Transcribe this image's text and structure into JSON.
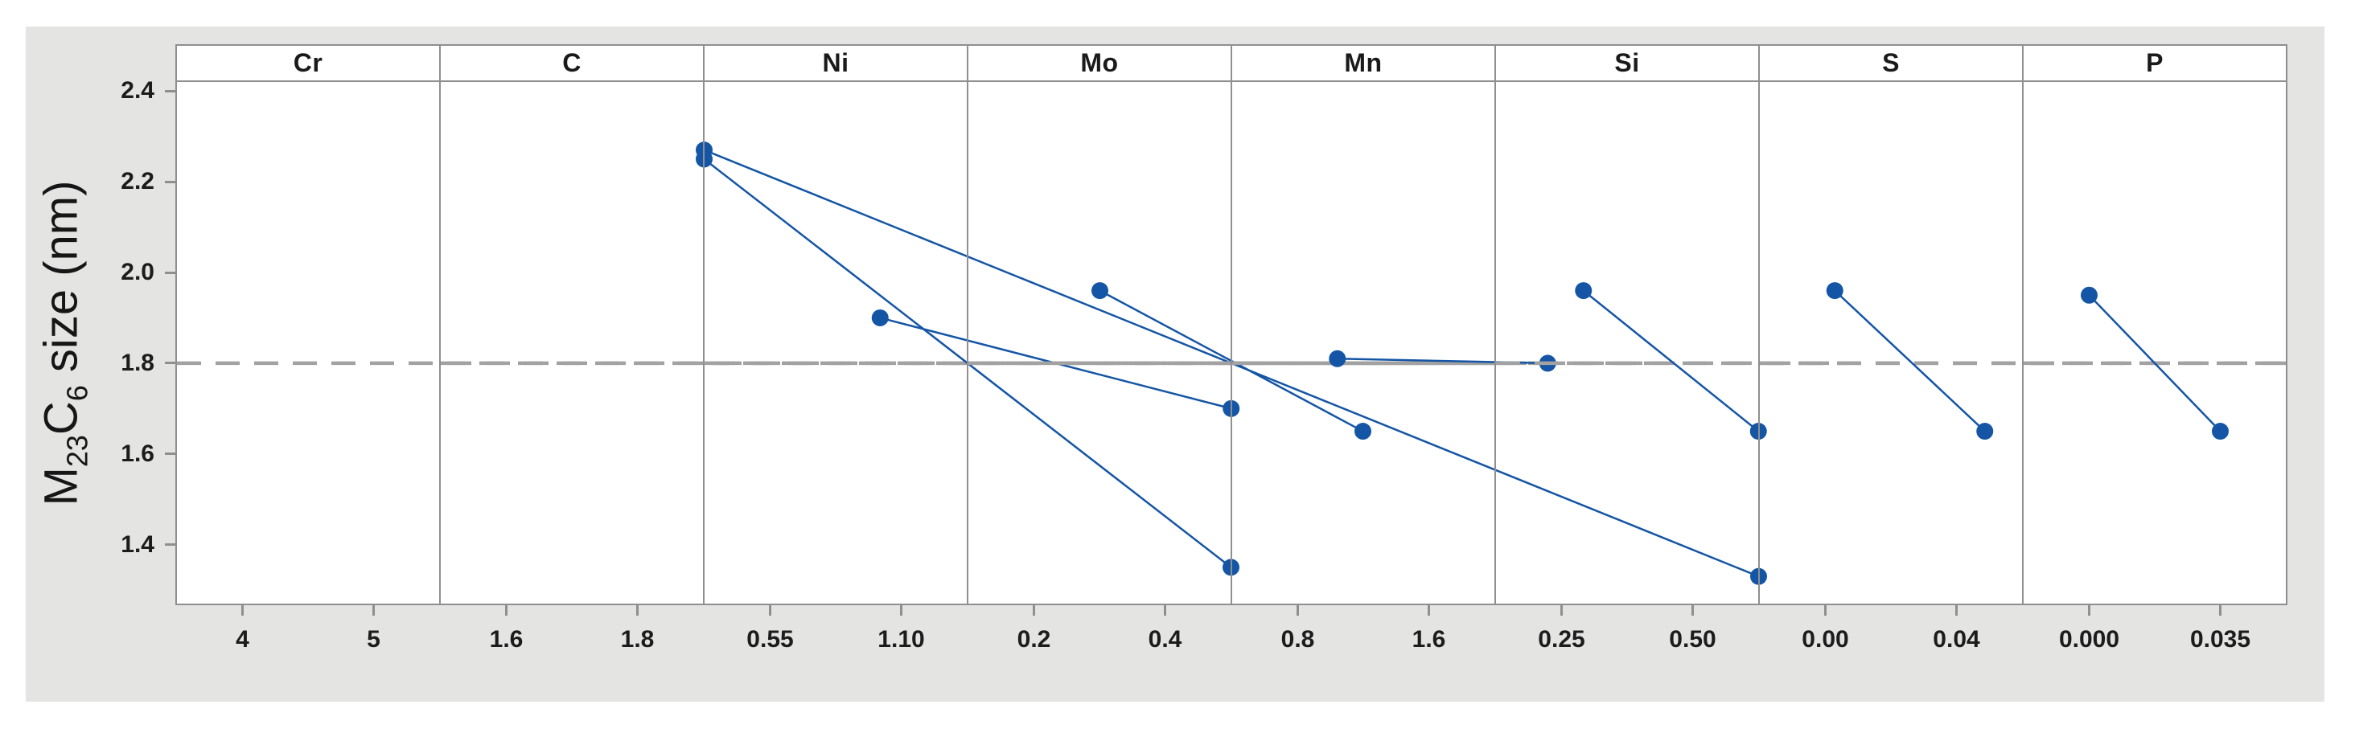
{
  "figure": {
    "background": "#e4e4e3",
    "y_axis_title": {
      "m": "M",
      "sub_23": "23",
      "c": "C",
      "sub_6": "6",
      "rest": " size (nm)"
    },
    "y_ticks": [
      {
        "label": "2.4",
        "value": 2.4
      },
      {
        "label": "2.2",
        "value": 2.2
      },
      {
        "label": "2.0",
        "value": 2.0
      },
      {
        "label": "1.8",
        "value": 1.8
      },
      {
        "label": "1.6",
        "value": 1.6
      },
      {
        "label": "1.4",
        "value": 1.4
      }
    ]
  },
  "chart_data": {
    "type": "line",
    "subtype": "main_effects_plot",
    "title": "",
    "xlabel": "",
    "ylabel": "M23C6 size (nm)",
    "ylim": [
      1.27,
      2.42
    ],
    "yticks": [
      1.4,
      1.6,
      1.8,
      2.0,
      2.2,
      2.4
    ],
    "reference_line_y": 1.8,
    "grid": false,
    "legend_position": "none",
    "panels": [
      {
        "factor": "Cr",
        "x": [
          4,
          5
        ],
        "x_tick_labels": [
          "4",
          "5"
        ],
        "values": [
          2.27,
          1.33
        ]
      },
      {
        "factor": "C",
        "x": [
          1.6,
          1.8
        ],
        "x_tick_labels": [
          "1.6",
          "1.8"
        ],
        "values": [
          2.25,
          1.35
        ]
      },
      {
        "factor": "Ni",
        "x": [
          0.55,
          1.1
        ],
        "x_tick_labels": [
          "0.55",
          "1.10"
        ],
        "values": [
          1.9,
          1.7
        ]
      },
      {
        "factor": "Mo",
        "x": [
          0.2,
          0.4
        ],
        "x_tick_labels": [
          "0.2",
          "0.4"
        ],
        "values": [
          1.96,
          1.65
        ]
      },
      {
        "factor": "Mn",
        "x": [
          0.8,
          1.6
        ],
        "x_tick_labels": [
          "0.8",
          "1.6"
        ],
        "values": [
          1.81,
          1.8
        ]
      },
      {
        "factor": "Si",
        "x": [
          0.25,
          0.5
        ],
        "x_tick_labels": [
          "0.25",
          "0.50"
        ],
        "values": [
          1.96,
          1.65
        ]
      },
      {
        "factor": "S",
        "x": [
          0.0,
          0.04
        ],
        "x_tick_labels": [
          "0.00",
          "0.04"
        ],
        "values": [
          1.96,
          1.65
        ]
      },
      {
        "factor": "P",
        "x": [
          0.0,
          0.035
        ],
        "x_tick_labels": [
          "0.000",
          "0.035"
        ],
        "values": [
          1.95,
          1.65
        ]
      }
    ],
    "colors": {
      "series": "#1455a5",
      "reference_line": "#a2a2a2",
      "panel_border": "#8f8f8f",
      "panel_bg": "#ffffff",
      "figure_bg": "#e4e4e3",
      "tick_label": "#1c1c1c"
    }
  }
}
